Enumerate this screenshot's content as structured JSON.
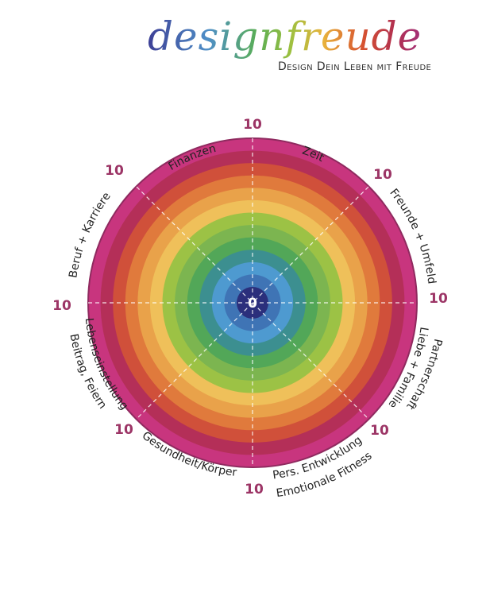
{
  "logo": {
    "wordmark": "designfreude",
    "tagline": "Design Dein Leben mit Freude"
  },
  "wheel": {
    "center_label": "0",
    "max_label": "10",
    "ring_colors": [
      "#c8357e",
      "#b42f58",
      "#d0503a",
      "#e07a3c",
      "#e9a24a",
      "#efc05a",
      "#9cc245",
      "#7cb550",
      "#52a758",
      "#3c8f90",
      "#4e9ad0",
      "#3f74b5",
      "#2b2f7c"
    ],
    "segments": [
      {
        "label": "Zeit"
      },
      {
        "label": "Freunde + Umfeld"
      },
      {
        "label": "Liebe + Familie",
        "label2": "Partnerschaft"
      },
      {
        "label": "Pers. Entwicklung",
        "label2": "Emotionale Fitness"
      },
      {
        "label": "Gesundheit/Körper"
      },
      {
        "label": "Lebenseinstellung",
        "label2": "Beitrag, Feiern"
      },
      {
        "label": "Beruf + Karriere"
      },
      {
        "label": "Finanzen"
      }
    ]
  }
}
